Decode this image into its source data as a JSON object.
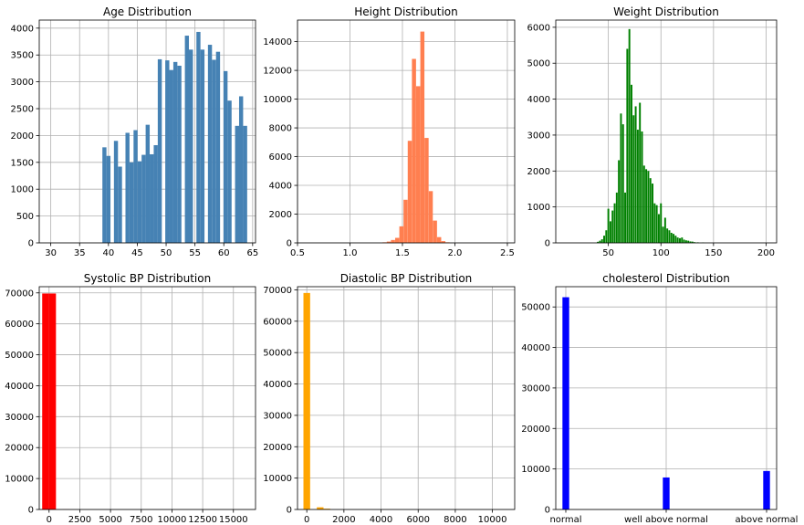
{
  "chart_data": [
    {
      "type": "bar",
      "title": "Age Distribution",
      "color": "#4682b4",
      "grid": true,
      "xlim": [
        28,
        65.5
      ],
      "ylim": [
        0,
        4150
      ],
      "xticks": [
        30,
        35,
        40,
        45,
        50,
        55,
        60,
        65
      ],
      "yticks": [
        0,
        500,
        1000,
        1500,
        2000,
        2500,
        3000,
        3500,
        4000
      ],
      "bin_width": 0.7,
      "bins": [
        {
          "x": 39.3,
          "y": 1780
        },
        {
          "x": 40.0,
          "y": 1620
        },
        {
          "x": 41.3,
          "y": 1900
        },
        {
          "x": 42.0,
          "y": 1420
        },
        {
          "x": 43.3,
          "y": 2050
        },
        {
          "x": 44.0,
          "y": 1500
        },
        {
          "x": 44.7,
          "y": 2100
        },
        {
          "x": 45.4,
          "y": 1520
        },
        {
          "x": 46.1,
          "y": 1640
        },
        {
          "x": 46.8,
          "y": 2200
        },
        {
          "x": 47.5,
          "y": 1650
        },
        {
          "x": 48.2,
          "y": 1820
        },
        {
          "x": 48.9,
          "y": 3420
        },
        {
          "x": 50.2,
          "y": 3400
        },
        {
          "x": 50.9,
          "y": 3220
        },
        {
          "x": 51.6,
          "y": 3370
        },
        {
          "x": 52.3,
          "y": 3300
        },
        {
          "x": 53.6,
          "y": 3860
        },
        {
          "x": 54.3,
          "y": 3600
        },
        {
          "x": 55.6,
          "y": 3930
        },
        {
          "x": 56.3,
          "y": 3600
        },
        {
          "x": 57.6,
          "y": 3690
        },
        {
          "x": 58.3,
          "y": 3410
        },
        {
          "x": 59.0,
          "y": 3560
        },
        {
          "x": 60.3,
          "y": 3200
        },
        {
          "x": 61.0,
          "y": 2650
        },
        {
          "x": 62.3,
          "y": 2180
        },
        {
          "x": 63.0,
          "y": 2730
        },
        {
          "x": 63.7,
          "y": 2180
        }
      ]
    },
    {
      "type": "bar",
      "title": "Height Distribution",
      "color": "#ff7f50",
      "grid": true,
      "xlim": [
        0.5,
        2.57
      ],
      "ylim": [
        0,
        15500
      ],
      "xticks": [
        0.5,
        1.0,
        1.5,
        2.0,
        2.5
      ],
      "xtick_labels": [
        "0.5",
        "1.0",
        "1.5",
        "2.0",
        "2.5"
      ],
      "yticks": [
        0,
        2000,
        4000,
        6000,
        8000,
        10000,
        12000,
        14000
      ],
      "bin_width": 0.039,
      "bins": [
        {
          "x": 1.33,
          "y": 40
        },
        {
          "x": 1.37,
          "y": 90
        },
        {
          "x": 1.41,
          "y": 200
        },
        {
          "x": 1.45,
          "y": 350
        },
        {
          "x": 1.49,
          "y": 1150
        },
        {
          "x": 1.53,
          "y": 3000
        },
        {
          "x": 1.57,
          "y": 7100
        },
        {
          "x": 1.61,
          "y": 12800
        },
        {
          "x": 1.65,
          "y": 10900
        },
        {
          "x": 1.69,
          "y": 14700
        },
        {
          "x": 1.73,
          "y": 7300
        },
        {
          "x": 1.77,
          "y": 3600
        },
        {
          "x": 1.81,
          "y": 1550
        },
        {
          "x": 1.85,
          "y": 400
        },
        {
          "x": 1.89,
          "y": 120
        },
        {
          "x": 1.93,
          "y": 40
        }
      ]
    },
    {
      "type": "bar",
      "title": "Weight Distribution",
      "color": "#008000",
      "grid": true,
      "xlim": [
        0,
        210
      ],
      "ylim": [
        0,
        6200
      ],
      "xticks": [
        50,
        100,
        150,
        200
      ],
      "yticks": [
        0,
        1000,
        2000,
        3000,
        4000,
        5000,
        6000
      ],
      "bin_width": 1.7,
      "bins": [
        {
          "x": 40,
          "y": 30
        },
        {
          "x": 42,
          "y": 60
        },
        {
          "x": 44,
          "y": 100
        },
        {
          "x": 46,
          "y": 200
        },
        {
          "x": 48,
          "y": 350
        },
        {
          "x": 50,
          "y": 950
        },
        {
          "x": 52,
          "y": 600
        },
        {
          "x": 54,
          "y": 900
        },
        {
          "x": 56,
          "y": 1100
        },
        {
          "x": 58,
          "y": 1400
        },
        {
          "x": 60,
          "y": 2300
        },
        {
          "x": 62,
          "y": 3600
        },
        {
          "x": 64,
          "y": 3300
        },
        {
          "x": 66,
          "y": 1400
        },
        {
          "x": 68,
          "y": 5400
        },
        {
          "x": 70,
          "y": 5950
        },
        {
          "x": 72,
          "y": 4400
        },
        {
          "x": 74,
          "y": 3550
        },
        {
          "x": 76,
          "y": 3800
        },
        {
          "x": 78,
          "y": 3150
        },
        {
          "x": 80,
          "y": 3900
        },
        {
          "x": 82,
          "y": 3100
        },
        {
          "x": 84,
          "y": 2150
        },
        {
          "x": 86,
          "y": 2050
        },
        {
          "x": 88,
          "y": 2000
        },
        {
          "x": 90,
          "y": 1800
        },
        {
          "x": 92,
          "y": 1650
        },
        {
          "x": 94,
          "y": 1100
        },
        {
          "x": 96,
          "y": 1050
        },
        {
          "x": 98,
          "y": 800
        },
        {
          "x": 100,
          "y": 1100
        },
        {
          "x": 102,
          "y": 450
        },
        {
          "x": 104,
          "y": 700
        },
        {
          "x": 106,
          "y": 400
        },
        {
          "x": 108,
          "y": 350
        },
        {
          "x": 110,
          "y": 280
        },
        {
          "x": 112,
          "y": 250
        },
        {
          "x": 114,
          "y": 200
        },
        {
          "x": 116,
          "y": 150
        },
        {
          "x": 118,
          "y": 130
        },
        {
          "x": 120,
          "y": 150
        },
        {
          "x": 122,
          "y": 90
        },
        {
          "x": 124,
          "y": 70
        },
        {
          "x": 126,
          "y": 60
        },
        {
          "x": 128,
          "y": 40
        },
        {
          "x": 130,
          "y": 35
        },
        {
          "x": 132,
          "y": 20
        },
        {
          "x": 135,
          "y": 15
        },
        {
          "x": 140,
          "y": 10
        }
      ]
    },
    {
      "type": "bar",
      "title": "Systolic BP Distribution",
      "color": "#ff0000",
      "grid": true,
      "xlim": [
        -800,
        16800
      ],
      "ylim": [
        0,
        72000
      ],
      "xticks": [
        0,
        2500,
        5000,
        7500,
        10000,
        12500,
        15000
      ],
      "yticks": [
        0,
        10000,
        20000,
        30000,
        40000,
        50000,
        60000,
        70000
      ],
      "bin_width": 560,
      "bins": [
        {
          "x": -280,
          "y": 69800
        },
        {
          "x": 280,
          "y": 69800
        },
        {
          "x": 1400,
          "y": 30
        }
      ]
    },
    {
      "type": "bar",
      "title": "Diastolic BP Distribution",
      "color": "#ffa500",
      "grid": true,
      "xlim": [
        -500,
        11200
      ],
      "ylim": [
        0,
        71000
      ],
      "xticks": [
        0,
        2000,
        4000,
        6000,
        8000,
        10000
      ],
      "yticks": [
        0,
        10000,
        20000,
        30000,
        40000,
        50000,
        60000,
        70000
      ],
      "bin_width": 360,
      "bins": [
        {
          "x": 0,
          "y": 69000
        },
        {
          "x": 720,
          "y": 700
        },
        {
          "x": 1080,
          "y": 250
        }
      ]
    },
    {
      "type": "bar",
      "title": "cholesterol Distribution",
      "color": "#0000ff",
      "grid": true,
      "xlim": [
        -0.1,
        2.1
      ],
      "ylim": [
        0,
        55000
      ],
      "categories": [
        "normal",
        "well above normal",
        "above normal"
      ],
      "category_positions": [
        0,
        1,
        2
      ],
      "yticks": [
        0,
        10000,
        20000,
        30000,
        40000,
        50000
      ],
      "bin_width": 0.067,
      "bins": [
        {
          "x": 0,
          "y": 52400
        },
        {
          "x": 1,
          "y": 7900
        },
        {
          "x": 2,
          "y": 9500
        }
      ]
    }
  ]
}
